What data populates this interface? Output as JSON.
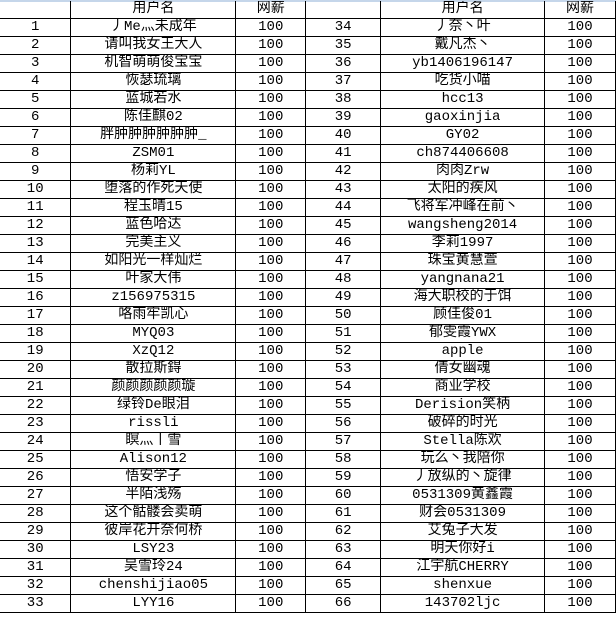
{
  "headers": {
    "index": "",
    "username": "用户名",
    "salary": "网薪"
  },
  "left_rows": [
    [
      "1",
      "丿Me灬未成年",
      "100"
    ],
    [
      "2",
      "请叫我女王大人",
      "100"
    ],
    [
      "3",
      "机智萌萌俊宝宝",
      "100"
    ],
    [
      "4",
      "恢瑟琉璃",
      "100"
    ],
    [
      "5",
      "蓝城若水",
      "100"
    ],
    [
      "6",
      "陈佳麒02",
      "100"
    ],
    [
      "7",
      "胖肿肿肿肿肿肿_",
      "100"
    ],
    [
      "8",
      "ZSM01",
      "100"
    ],
    [
      "9",
      "杨莉YL",
      "100"
    ],
    [
      "10",
      "堕落的作死天使",
      "100"
    ],
    [
      "11",
      "程玉晴15",
      "100"
    ],
    [
      "12",
      "蓝色哈达",
      "100"
    ],
    [
      "13",
      "完美主义",
      "100"
    ],
    [
      "14",
      "如阳光一样灿烂",
      "100"
    ],
    [
      "15",
      "叶家大伟",
      "100"
    ],
    [
      "16",
      "z156975315",
      "100"
    ],
    [
      "17",
      "咯雨牢凯心",
      "100"
    ],
    [
      "18",
      "MYQ03",
      "100"
    ],
    [
      "19",
      "XzQ12",
      "100"
    ],
    [
      "20",
      "散拉斯鍀",
      "100"
    ],
    [
      "21",
      "颜颜颜颜颜璇",
      "100"
    ],
    [
      "22",
      "绿铃De眼泪",
      "100"
    ],
    [
      "23",
      "rissli",
      "100"
    ],
    [
      "24",
      "瞑灬丨雪",
      "100"
    ],
    [
      "25",
      "Alison12",
      "100"
    ],
    [
      "26",
      "悟安学子",
      "100"
    ],
    [
      "27",
      "半陌浅殇",
      "100"
    ],
    [
      "28",
      "这个骷髅会卖萌",
      "100"
    ],
    [
      "29",
      "彼岸花开奈何桥",
      "100"
    ],
    [
      "30",
      "LSY23",
      "100"
    ],
    [
      "31",
      "吴雪玲24",
      "100"
    ],
    [
      "32",
      "chenshijiao05",
      "100"
    ],
    [
      "33",
      "LYY16",
      "100"
    ]
  ],
  "right_rows": [
    [
      "34",
      "丿奈丶叶",
      "100"
    ],
    [
      "35",
      "戴凡杰丶",
      "100"
    ],
    [
      "36",
      "yb1406196147",
      "100"
    ],
    [
      "37",
      "吃货小喵",
      "100"
    ],
    [
      "38",
      "hcc13",
      "100"
    ],
    [
      "39",
      "gaoxinjia",
      "100"
    ],
    [
      "40",
      "GY02",
      "100"
    ],
    [
      "41",
      "ch874406608",
      "100"
    ],
    [
      "42",
      "肉肉Zrw",
      "100"
    ],
    [
      "43",
      "太阳的疾风",
      "100"
    ],
    [
      "44",
      "飞将军冲峰在前丶",
      "100"
    ],
    [
      "45",
      "wangsheng2014",
      "100"
    ],
    [
      "46",
      "李莉1997",
      "100"
    ],
    [
      "47",
      "珠宝黄慧萱",
      "100"
    ],
    [
      "48",
      "yangnana21",
      "100"
    ],
    [
      "49",
      "海大职校的于饵",
      "100"
    ],
    [
      "50",
      "顾佳俊01",
      "100"
    ],
    [
      "51",
      "郁雯霞YWX",
      "100"
    ],
    [
      "52",
      "apple",
      "100"
    ],
    [
      "53",
      "倩女幽魂",
      "100"
    ],
    [
      "54",
      "商业学校",
      "100"
    ],
    [
      "55",
      "Derision笑柄",
      "100"
    ],
    [
      "56",
      "破碎的时光",
      "100"
    ],
    [
      "57",
      "Stella陈欢",
      "100"
    ],
    [
      "58",
      "玩么丶我陪你",
      "100"
    ],
    [
      "59",
      "丿放纵的丶旋律",
      "100"
    ],
    [
      "60",
      "0531309黄鑫霞",
      "100"
    ],
    [
      "61",
      "财会0531309",
      "100"
    ],
    [
      "62",
      "艾兔子大发",
      "100"
    ],
    [
      "63",
      "明天你好i",
      "100"
    ],
    [
      "64",
      "江宇航CHERRY",
      "100"
    ],
    [
      "65",
      "shenxue",
      "100"
    ],
    [
      "66",
      "143702ljc",
      "100"
    ]
  ]
}
